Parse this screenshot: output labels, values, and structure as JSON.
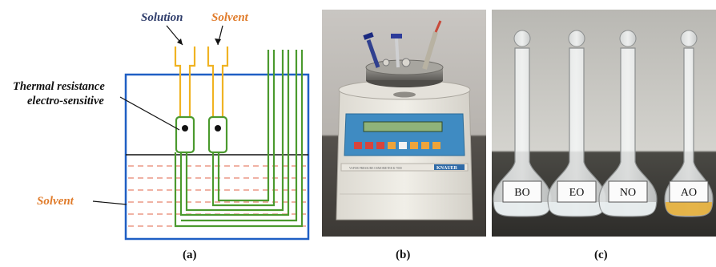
{
  "panel_a": {
    "labels": {
      "solution": "Solution",
      "solvent_top": "Solvent",
      "sensor_line1": "Thermal resistance",
      "sensor_line2": "electro-sensitive",
      "solvent_bath": "Solvent"
    },
    "colors": {
      "solution_label": "#2f3d6b",
      "solvent_label": "#e07b2a",
      "tube": "#f0b323",
      "wire": "#4b9a2e",
      "box": "#1f5fc4",
      "dash": "#e8836e"
    },
    "caption": "(a)"
  },
  "panel_b": {
    "caption": "(b)",
    "device_brand": "KNAUER",
    "device_model_text": "VAPOR PRESSURE OSMOMETER K-7000"
  },
  "panel_c": {
    "caption": "(c)",
    "flasks": [
      {
        "label": "BO",
        "liquid": "#e9eef0"
      },
      {
        "label": "EO",
        "liquid": "#e9eef0"
      },
      {
        "label": "NO",
        "liquid": "#e9eef0"
      },
      {
        "label": "AO",
        "liquid": "#e7b03a"
      }
    ]
  }
}
